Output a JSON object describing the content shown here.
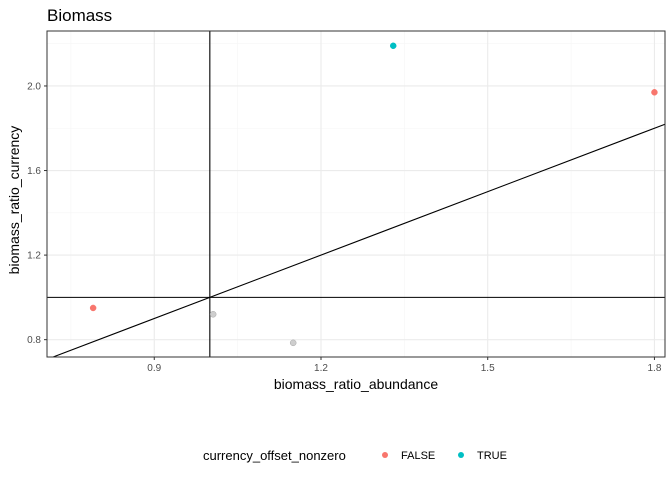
{
  "chart_data": {
    "type": "scatter",
    "title": "Biomass",
    "xlabel": "biomass_ratio_abundance",
    "ylabel": "biomass_ratio_currency",
    "xlim": [
      0.707,
      1.819
    ],
    "ylim": [
      0.718,
      2.26
    ],
    "x_ticks": [
      0.9,
      1.2,
      1.5,
      1.8
    ],
    "x_tick_labels": [
      "0.9",
      "1.2",
      "1.5",
      "1.8"
    ],
    "y_ticks": [
      0.8,
      1.2,
      1.6,
      2.0
    ],
    "y_tick_labels": [
      "0.8",
      "1.2",
      "1.6",
      "2.0"
    ],
    "grid": true,
    "theme": "bw",
    "reference_lines": {
      "vline_x": 1.0,
      "hline_y": 1.0,
      "diagonal": "y = x"
    },
    "points": [
      {
        "x": 0.79,
        "y": 0.95,
        "group": "FALSE"
      },
      {
        "x": 1.8,
        "y": 1.97,
        "group": "FALSE"
      },
      {
        "x": 1.33,
        "y": 2.19,
        "group": "TRUE"
      },
      {
        "x": 1.006,
        "y": 0.92,
        "group": "NA"
      },
      {
        "x": 1.15,
        "y": 0.785,
        "group": "NA"
      }
    ],
    "legend": {
      "title": "currency_offset_nonzero",
      "position": "bottom",
      "entries": [
        {
          "label": "FALSE",
          "color": "#F8766D"
        },
        {
          "label": "TRUE",
          "color": "#00BFC4"
        }
      ]
    },
    "colors": {
      "FALSE": "#F8766D",
      "TRUE": "#00BFC4",
      "NA": "#BEBEBE",
      "grid_major": "#EBEBEB",
      "grid_minor": "#F5F5F5",
      "panel_border": "#333333",
      "reference_line": "#000000"
    }
  }
}
